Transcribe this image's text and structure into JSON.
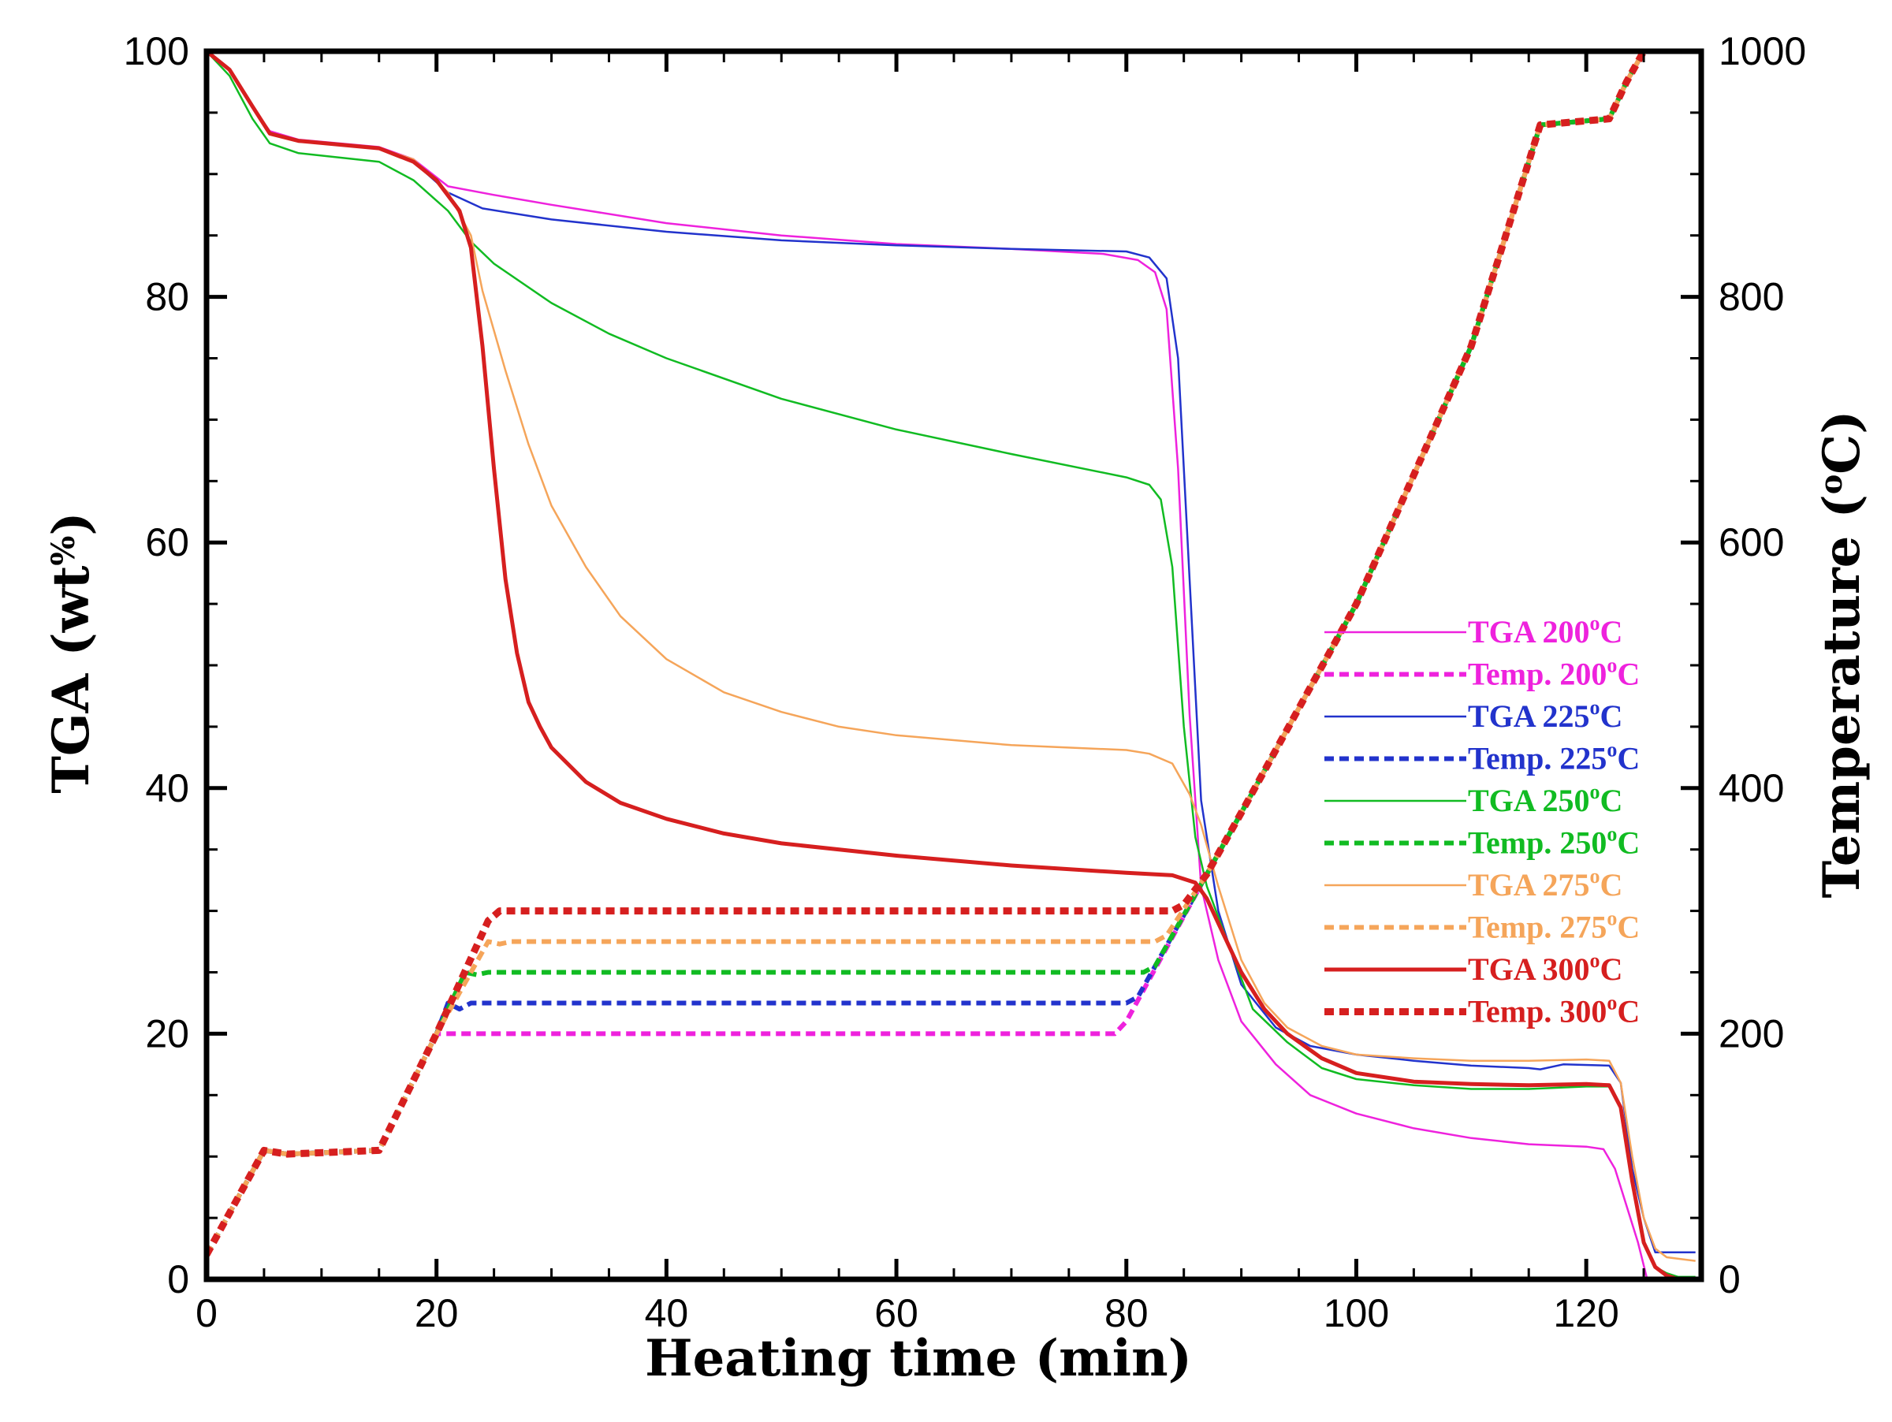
{
  "chart_data": {
    "type": "line",
    "title": "",
    "xlabel": "Heating time (min)",
    "ylabel": "TGA (wt%)",
    "ylabel_parts": [
      "TGA (wt",
      "%",
      ")"
    ],
    "y2label": "Temperature (°C)",
    "y2label_parts": [
      "Temperature (",
      "o",
      "C)"
    ],
    "xlim": [
      0,
      130
    ],
    "ylim": [
      0,
      100
    ],
    "y2lim": [
      0,
      1000
    ],
    "x_ticks": [
      0,
      20,
      40,
      60,
      80,
      100,
      120
    ],
    "y_ticks": [
      0,
      20,
      40,
      60,
      80,
      100
    ],
    "y2_ticks": [
      0,
      200,
      400,
      600,
      800,
      1000
    ],
    "x_tick_labels": [
      "0",
      "20",
      "40",
      "60",
      "80",
      "100",
      "120"
    ],
    "y_tick_labels": [
      "0",
      "20",
      "40",
      "60",
      "80",
      "100"
    ],
    "y2_tick_labels": [
      "0",
      "200",
      "400",
      "600",
      "800",
      "1000"
    ],
    "legend_position": "right-middle",
    "series": [
      {
        "name": "TGA 200°C",
        "label_main": "TGA  200",
        "label_tail": "C",
        "kind": "tga",
        "color": "#ee22dd",
        "axis": "left",
        "points": [
          [
            0,
            100
          ],
          [
            2,
            98.5
          ],
          [
            4,
            95.5
          ],
          [
            5.5,
            93.5
          ],
          [
            8,
            92.8
          ],
          [
            15,
            92.2
          ],
          [
            18,
            91.2
          ],
          [
            21,
            89
          ],
          [
            25,
            88.3
          ],
          [
            30,
            87.5
          ],
          [
            40,
            86
          ],
          [
            50,
            85
          ],
          [
            60,
            84.3
          ],
          [
            70,
            83.9
          ],
          [
            78,
            83.5
          ],
          [
            81,
            83
          ],
          [
            82.5,
            82
          ],
          [
            83.5,
            79
          ],
          [
            84.5,
            66
          ],
          [
            85.5,
            46
          ],
          [
            86.5,
            32
          ],
          [
            88,
            26
          ],
          [
            90,
            21
          ],
          [
            93,
            17.5
          ],
          [
            96,
            15
          ],
          [
            100,
            13.5
          ],
          [
            105,
            12.3
          ],
          [
            110,
            11.5
          ],
          [
            115,
            11
          ],
          [
            120,
            10.8
          ],
          [
            121.5,
            10.6
          ],
          [
            122.5,
            9
          ],
          [
            123.5,
            6
          ],
          [
            124.5,
            3
          ],
          [
            125.3,
            0
          ]
        ]
      },
      {
        "name": "Temp. 200°C",
        "label_main": "Temp. 200",
        "label_tail": "C",
        "kind": "temp",
        "color": "#ee22dd",
        "axis": "right",
        "points": [
          [
            0,
            20
          ],
          [
            5,
            105
          ],
          [
            7,
            102
          ],
          [
            15,
            105
          ],
          [
            20,
            200
          ],
          [
            21,
            200
          ],
          [
            79,
            200
          ],
          [
            80,
            210
          ],
          [
            87,
            330
          ],
          [
            90,
            380
          ],
          [
            100,
            550
          ],
          [
            110,
            760
          ],
          [
            116,
            940
          ],
          [
            122,
            945
          ],
          [
            123.5,
            975
          ],
          [
            125,
            1000
          ]
        ]
      },
      {
        "name": "TGA 225°C",
        "label_main": "TGA  225",
        "label_tail": "C",
        "kind": "tga",
        "color": "#2233cc",
        "axis": "left",
        "points": [
          [
            0,
            100
          ],
          [
            2,
            98.5
          ],
          [
            4,
            95.5
          ],
          [
            5.5,
            93.3
          ],
          [
            8,
            92.7
          ],
          [
            15,
            92.1
          ],
          [
            18,
            91
          ],
          [
            21,
            88.5
          ],
          [
            24,
            87.2
          ],
          [
            30,
            86.3
          ],
          [
            40,
            85.3
          ],
          [
            50,
            84.6
          ],
          [
            60,
            84.2
          ],
          [
            70,
            83.9
          ],
          [
            80,
            83.7
          ],
          [
            82,
            83.2
          ],
          [
            83.5,
            81.5
          ],
          [
            84.5,
            75
          ],
          [
            85.5,
            57
          ],
          [
            86.5,
            39
          ],
          [
            88,
            30
          ],
          [
            90,
            24
          ],
          [
            93,
            20.5
          ],
          [
            96,
            19
          ],
          [
            100,
            18.3
          ],
          [
            105,
            17.8
          ],
          [
            110,
            17.4
          ],
          [
            115,
            17.2
          ],
          [
            116,
            17.1
          ],
          [
            118,
            17.5
          ],
          [
            122,
            17.4
          ],
          [
            123,
            16
          ],
          [
            124,
            9
          ],
          [
            125,
            5
          ],
          [
            126,
            2.2
          ],
          [
            128,
            2.2
          ],
          [
            129.5,
            2.2
          ]
        ]
      },
      {
        "name": "Temp. 225°C",
        "label_main": "Temp. 225",
        "label_tail": "C",
        "kind": "temp",
        "color": "#2233cc",
        "axis": "right",
        "points": [
          [
            0,
            20
          ],
          [
            5,
            105
          ],
          [
            7,
            102
          ],
          [
            15,
            105
          ],
          [
            20,
            200
          ],
          [
            21,
            225
          ],
          [
            22,
            220
          ],
          [
            23,
            225
          ],
          [
            80,
            225
          ],
          [
            81,
            230
          ],
          [
            87,
            330
          ],
          [
            90,
            380
          ],
          [
            100,
            550
          ],
          [
            110,
            760
          ],
          [
            116,
            940
          ],
          [
            122,
            945
          ],
          [
            123.5,
            975
          ],
          [
            125,
            1000
          ]
        ]
      },
      {
        "name": "TGA 250°C",
        "label_main": "TGA  250",
        "label_tail": "C",
        "kind": "tga",
        "color": "#11bb22",
        "axis": "left",
        "points": [
          [
            0,
            100
          ],
          [
            2,
            98
          ],
          [
            4,
            94.5
          ],
          [
            5.5,
            92.5
          ],
          [
            8,
            91.7
          ],
          [
            15,
            91
          ],
          [
            18,
            89.5
          ],
          [
            21,
            87
          ],
          [
            23,
            84.5
          ],
          [
            25,
            82.7
          ],
          [
            30,
            79.5
          ],
          [
            35,
            77
          ],
          [
            40,
            75
          ],
          [
            50,
            71.7
          ],
          [
            60,
            69.2
          ],
          [
            70,
            67.2
          ],
          [
            80,
            65.3
          ],
          [
            82,
            64.7
          ],
          [
            83,
            63.5
          ],
          [
            84,
            58
          ],
          [
            85,
            45
          ],
          [
            86,
            36
          ],
          [
            87,
            32
          ],
          [
            89,
            27
          ],
          [
            91,
            22
          ],
          [
            94,
            19.3
          ],
          [
            97,
            17.2
          ],
          [
            100,
            16.3
          ],
          [
            105,
            15.8
          ],
          [
            110,
            15.5
          ],
          [
            115,
            15.5
          ],
          [
            120,
            15.7
          ],
          [
            122,
            15.7
          ],
          [
            123,
            14
          ],
          [
            124,
            8
          ],
          [
            125,
            3
          ],
          [
            126,
            1
          ],
          [
            127,
            0.5
          ],
          [
            128,
            0.2
          ],
          [
            129.5,
            0.2
          ]
        ]
      },
      {
        "name": "Temp. 250°C",
        "label_main": "Temp. 250",
        "label_tail": "C",
        "kind": "temp",
        "color": "#11bb22",
        "axis": "right",
        "points": [
          [
            0,
            20
          ],
          [
            5,
            105
          ],
          [
            7,
            102
          ],
          [
            15,
            105
          ],
          [
            20,
            200
          ],
          [
            22.5,
            250
          ],
          [
            23.5,
            248
          ],
          [
            24.5,
            250
          ],
          [
            81.5,
            250
          ],
          [
            82.5,
            255
          ],
          [
            87,
            330
          ],
          [
            90,
            380
          ],
          [
            100,
            550
          ],
          [
            110,
            760
          ],
          [
            116,
            940
          ],
          [
            122,
            945
          ],
          [
            123.5,
            975
          ],
          [
            125,
            1000
          ]
        ]
      },
      {
        "name": "TGA 275°C",
        "label_main": "TGA  275",
        "label_tail": "C",
        "kind": "tga",
        "color": "#f5a55a",
        "axis": "left",
        "points": [
          [
            0,
            100
          ],
          [
            2,
            98.5
          ],
          [
            4,
            95.5
          ],
          [
            5.5,
            93.3
          ],
          [
            8,
            92.7
          ],
          [
            15,
            92.1
          ],
          [
            18,
            91.2
          ],
          [
            21,
            88.5
          ],
          [
            23,
            85
          ],
          [
            24,
            80.5
          ],
          [
            26,
            74
          ],
          [
            28,
            68
          ],
          [
            30,
            63
          ],
          [
            33,
            58
          ],
          [
            36,
            54
          ],
          [
            40,
            50.5
          ],
          [
            45,
            47.8
          ],
          [
            50,
            46.2
          ],
          [
            55,
            45
          ],
          [
            60,
            44.3
          ],
          [
            70,
            43.5
          ],
          [
            80,
            43.1
          ],
          [
            82,
            42.8
          ],
          [
            84,
            42
          ],
          [
            85.5,
            39.5
          ],
          [
            86.5,
            37
          ],
          [
            88,
            32
          ],
          [
            90,
            26
          ],
          [
            92,
            22.5
          ],
          [
            94,
            20.5
          ],
          [
            97,
            19
          ],
          [
            100,
            18.3
          ],
          [
            105,
            18
          ],
          [
            110,
            17.8
          ],
          [
            115,
            17.8
          ],
          [
            120,
            17.9
          ],
          [
            122,
            17.8
          ],
          [
            123,
            16
          ],
          [
            124,
            10
          ],
          [
            125,
            5
          ],
          [
            126,
            2.5
          ],
          [
            127,
            1.8
          ],
          [
            129.5,
            1.5
          ]
        ]
      },
      {
        "name": "Temp. 275°C",
        "label_main": "Temp. 275",
        "label_tail": "C",
        "kind": "temp",
        "color": "#f5a55a",
        "axis": "right",
        "points": [
          [
            0,
            20
          ],
          [
            5,
            105
          ],
          [
            7,
            102
          ],
          [
            15,
            105
          ],
          [
            20,
            200
          ],
          [
            24.5,
            275
          ],
          [
            25.5,
            273
          ],
          [
            26.5,
            275
          ],
          [
            82.5,
            275
          ],
          [
            83.5,
            280
          ],
          [
            87,
            330
          ],
          [
            90,
            380
          ],
          [
            100,
            550
          ],
          [
            110,
            760
          ],
          [
            116,
            940
          ],
          [
            122,
            945
          ],
          [
            123.5,
            975
          ],
          [
            125,
            1000
          ]
        ]
      },
      {
        "name": "TGA 300°C",
        "label_main": "TGA  300",
        "label_tail": "C",
        "kind": "tga",
        "color": "#d61f1f",
        "axis": "left",
        "points": [
          [
            0,
            100
          ],
          [
            2,
            98.5
          ],
          [
            4,
            95.5
          ],
          [
            5.5,
            93.3
          ],
          [
            8,
            92.7
          ],
          [
            15,
            92.1
          ],
          [
            18,
            91
          ],
          [
            20,
            89.5
          ],
          [
            22,
            87
          ],
          [
            23,
            84
          ],
          [
            24,
            76
          ],
          [
            25,
            66
          ],
          [
            26,
            57
          ],
          [
            27,
            51
          ],
          [
            28,
            47
          ],
          [
            29,
            45
          ],
          [
            30,
            43.3
          ],
          [
            33,
            40.5
          ],
          [
            36,
            38.8
          ],
          [
            40,
            37.5
          ],
          [
            45,
            36.3
          ],
          [
            50,
            35.5
          ],
          [
            60,
            34.5
          ],
          [
            70,
            33.7
          ],
          [
            80,
            33.1
          ],
          [
            84,
            32.9
          ],
          [
            86,
            32.3
          ],
          [
            87,
            31
          ],
          [
            88,
            29
          ],
          [
            90,
            25
          ],
          [
            92,
            22
          ],
          [
            94,
            20
          ],
          [
            97,
            18
          ],
          [
            100,
            16.8
          ],
          [
            105,
            16.1
          ],
          [
            110,
            15.9
          ],
          [
            115,
            15.8
          ],
          [
            120,
            15.9
          ],
          [
            122,
            15.8
          ],
          [
            123,
            14
          ],
          [
            124,
            8
          ],
          [
            125,
            3
          ],
          [
            126,
            1
          ],
          [
            127,
            0.3
          ],
          [
            128,
            0
          ],
          [
            129.5,
            0
          ]
        ]
      },
      {
        "name": "Temp. 300°C",
        "label_main": "Temp. 300",
        "label_tail": "C",
        "kind": "temp",
        "color": "#d61f1f",
        "axis": "right",
        "points": [
          [
            0,
            20
          ],
          [
            5,
            105
          ],
          [
            7,
            102
          ],
          [
            15,
            105
          ],
          [
            20,
            200
          ],
          [
            24.5,
            292
          ],
          [
            25.5,
            300
          ],
          [
            27,
            300
          ],
          [
            84,
            300
          ],
          [
            85,
            305
          ],
          [
            87,
            330
          ],
          [
            90,
            380
          ],
          [
            100,
            550
          ],
          [
            110,
            760
          ],
          [
            116,
            940
          ],
          [
            122,
            945
          ],
          [
            123.5,
            975
          ],
          [
            125,
            1000
          ]
        ]
      }
    ]
  }
}
